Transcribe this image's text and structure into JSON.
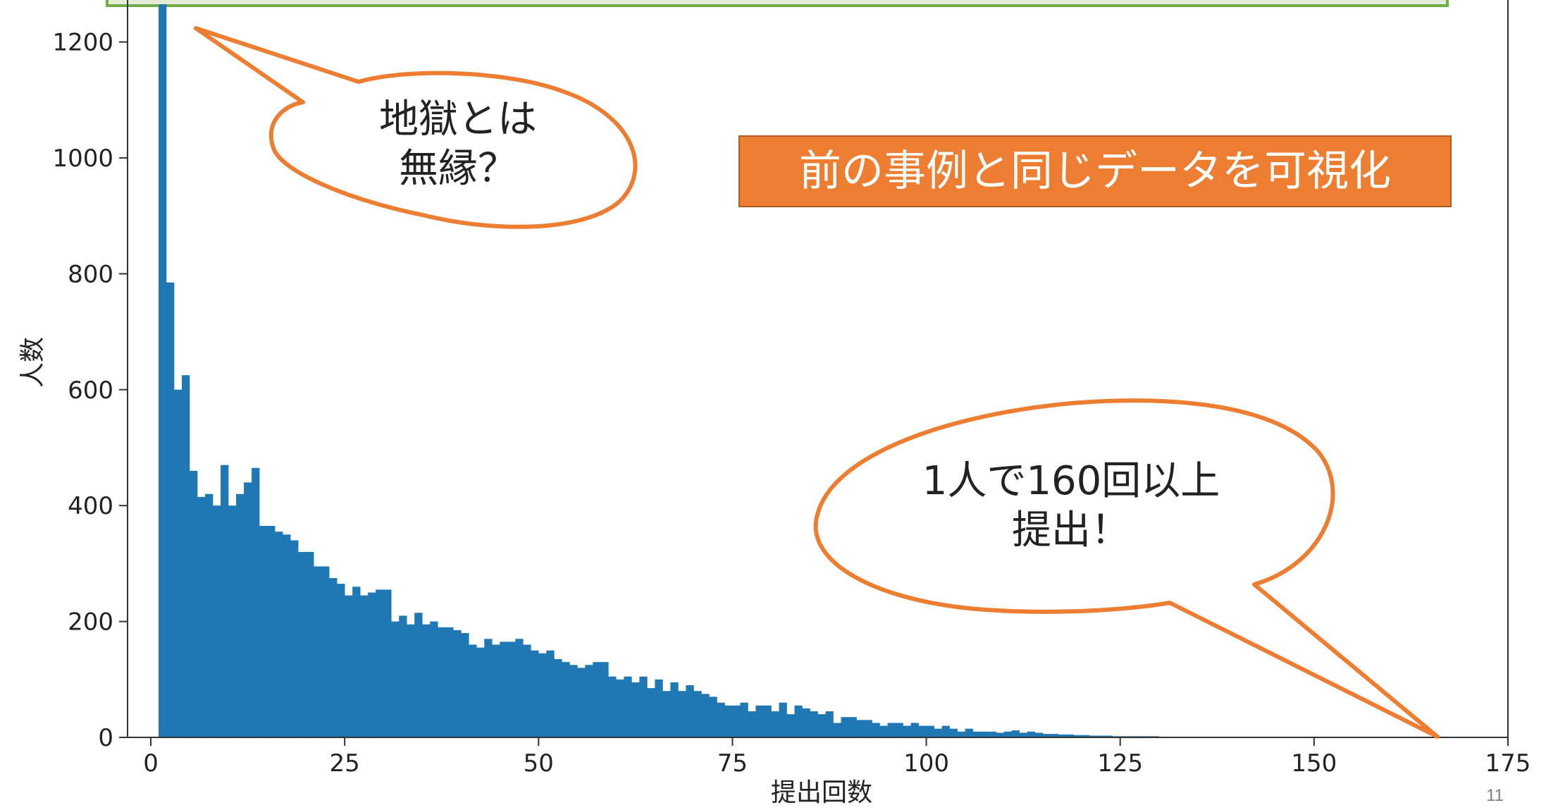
{
  "slide": {
    "callout_box": "前の事例と同じデータを可視化",
    "bubble_left": "地獄とは\n無縁？",
    "bubble_right": "1人で160回以上\n提出！",
    "page_number": "11"
  },
  "colors": {
    "bar": "#1f77b4",
    "callout_fill": "#ed7d31",
    "bubble_stroke": "#ed7d31",
    "top_band_border": "#70ad47"
  },
  "chart_data": {
    "type": "bar",
    "title": "",
    "xlabel": "提出回数",
    "ylabel": "人数",
    "xlim": [
      -3,
      175
    ],
    "ylim": [
      0,
      1270
    ],
    "xticks": [
      0,
      25,
      50,
      75,
      100,
      125,
      150,
      175
    ],
    "yticks": [
      0,
      200,
      400,
      600,
      800,
      1000,
      1200
    ],
    "bin_start": 1,
    "bin_width": 1,
    "values": [
      1265,
      785,
      600,
      625,
      460,
      415,
      420,
      400,
      470,
      400,
      420,
      440,
      465,
      365,
      365,
      355,
      350,
      340,
      320,
      320,
      295,
      295,
      275,
      265,
      245,
      260,
      245,
      250,
      255,
      255,
      200,
      210,
      195,
      215,
      195,
      200,
      190,
      190,
      185,
      180,
      160,
      155,
      170,
      160,
      165,
      165,
      170,
      160,
      150,
      145,
      150,
      135,
      130,
      125,
      120,
      125,
      130,
      130,
      105,
      100,
      105,
      95,
      105,
      85,
      100,
      80,
      95,
      80,
      90,
      80,
      75,
      70,
      60,
      55,
      55,
      60,
      45,
      55,
      55,
      45,
      60,
      40,
      55,
      50,
      45,
      40,
      45,
      25,
      35,
      35,
      30,
      30,
      25,
      20,
      25,
      25,
      20,
      25,
      20,
      20,
      15,
      20,
      15,
      10,
      15,
      10,
      10,
      10,
      8,
      10,
      12,
      8,
      10,
      8,
      6,
      6,
      5,
      5,
      4,
      4,
      3,
      3,
      3,
      2,
      2,
      2,
      2,
      2,
      2,
      1,
      1,
      1,
      1,
      1,
      1,
      1,
      1,
      1,
      0,
      1,
      0,
      0,
      1,
      0,
      1,
      0,
      0,
      1,
      0,
      0,
      0,
      0,
      0,
      0,
      0,
      0,
      0,
      0,
      0,
      1,
      0,
      0,
      0,
      0,
      1
    ]
  }
}
